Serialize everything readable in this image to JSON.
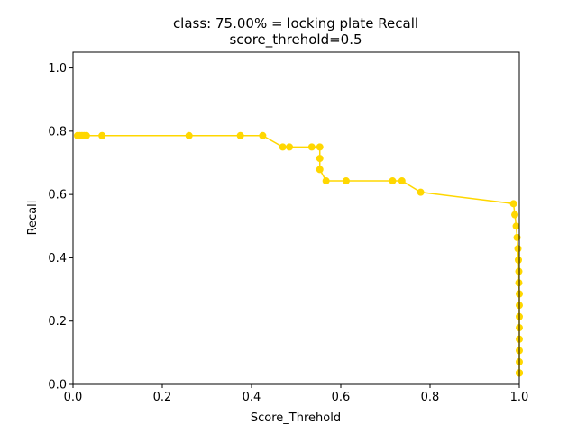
{
  "chart_data": {
    "type": "line",
    "title": "class: 75.00% = locking plate Recall",
    "subtitle": "score_threhold=0.5",
    "xlabel": "Score_Threhold",
    "ylabel": "Recall",
    "xlim": [
      0.0,
      1.0
    ],
    "ylim": [
      0.0,
      1.05
    ],
    "xticks": [
      "0.0",
      "0.2",
      "0.4",
      "0.6",
      "0.8",
      "1.0"
    ],
    "yticks": [
      "0.0",
      "0.2",
      "0.4",
      "0.6",
      "0.8",
      "1.0"
    ],
    "grid": false,
    "legend": "none",
    "series_color": "#FFD700",
    "series": [
      {
        "x": [
          0.01,
          0.015,
          0.02,
          0.025,
          0.03,
          0.065,
          0.26,
          0.375,
          0.425,
          0.47,
          0.485,
          0.535,
          0.553,
          0.553,
          0.553,
          0.567,
          0.612,
          0.716,
          0.737,
          0.779,
          0.987,
          0.99,
          0.993,
          0.995,
          0.997,
          0.998,
          0.999,
          0.999,
          1.0,
          1.0,
          1.0,
          1.0,
          1.0,
          1.0,
          1.0,
          1.0,
          1.0,
          1.0,
          1.0,
          1.0
        ],
        "y": [
          0.786,
          0.786,
          0.786,
          0.786,
          0.786,
          0.786,
          0.786,
          0.786,
          0.786,
          0.75,
          0.75,
          0.75,
          0.75,
          0.714,
          0.679,
          0.643,
          0.643,
          0.643,
          0.643,
          0.607,
          0.571,
          0.536,
          0.5,
          0.464,
          0.429,
          0.393,
          0.357,
          0.321,
          0.286,
          0.25,
          0.214,
          0.179,
          0.143,
          0.107,
          0.071,
          0.036,
          0.036,
          0.036,
          0.036,
          0.036
        ]
      }
    ]
  }
}
